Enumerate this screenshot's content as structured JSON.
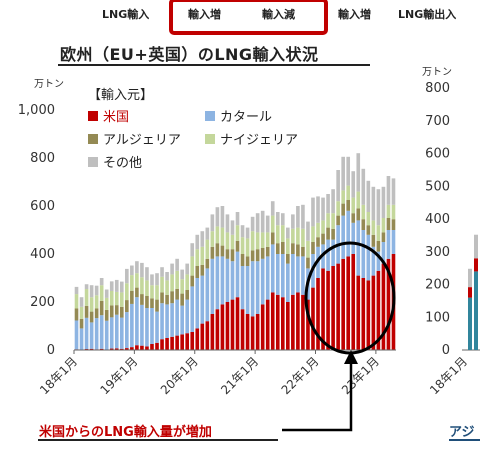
{
  "tabs": [
    "LNG輸入",
    "輸入増",
    "輸入減",
    "輸入増",
    "LNG輸出入"
  ],
  "title": "欧州（EU+英国）のLNG輸入状況",
  "callout": "米国からのLNG輸入量が増加",
  "asia_title_fragment": "アジ",
  "colors": {
    "us": "#c00000",
    "qatar": "#8db4e2",
    "algeria": "#948a54",
    "nigeria": "#c4d79b",
    "other": "#bfbfbf",
    "frame": "#c00000",
    "ellipse": "#000000",
    "callout_text": "#c00000",
    "asia_bar_blue": "#31859c"
  },
  "chart_data": [
    {
      "type": "bar",
      "stacked": true,
      "unit": "万トン",
      "ylim": [
        0,
        1000
      ],
      "yticks": [
        "0",
        "200",
        "400",
        "600",
        "800",
        "1,000"
      ],
      "xtick_labels": [
        "18年1月",
        "19年1月",
        "20年1月",
        "21年1月",
        "22年1月",
        "23年1月"
      ],
      "legend_title": "【輸入元】",
      "legend": [
        "米国",
        "カタール",
        "アルジェリア",
        "ナイジェリア",
        "その他"
      ],
      "months": 64,
      "series": [
        {
          "name": "米国",
          "values": [
            3,
            0,
            4,
            5,
            3,
            5,
            2,
            6,
            7,
            5,
            8,
            12,
            20,
            18,
            15,
            25,
            30,
            45,
            50,
            55,
            60,
            65,
            70,
            75,
            90,
            110,
            120,
            150,
            170,
            190,
            200,
            210,
            220,
            170,
            150,
            140,
            150,
            190,
            210,
            240,
            230,
            220,
            200,
            230,
            240,
            230,
            210,
            260,
            300,
            340,
            330,
            350,
            360,
            380,
            390,
            400,
            310,
            300,
            290,
            310,
            330,
            360,
            380,
            400
          ]
        },
        {
          "name": "カタール",
          "values": [
            120,
            90,
            130,
            110,
            130,
            140,
            120,
            130,
            140,
            130,
            150,
            180,
            200,
            170,
            160,
            150,
            130,
            150,
            140,
            140,
            150,
            120,
            140,
            190,
            210,
            200,
            220,
            230,
            220,
            200,
            180,
            160,
            190,
            180,
            200,
            230,
            220,
            190,
            180,
            200,
            170,
            180,
            160,
            170,
            150,
            160,
            130,
            140,
            130,
            100,
            130,
            110,
            160,
            180,
            190,
            130,
            230,
            200,
            190,
            120,
            80,
            90,
            120,
            100
          ]
        },
        {
          "name": "アルジェリア",
          "values": [
            50,
            40,
            50,
            45,
            40,
            60,
            45,
            50,
            40,
            45,
            50,
            55,
            40,
            45,
            50,
            40,
            50,
            45,
            40,
            50,
            45,
            50,
            40,
            45,
            50,
            45,
            40,
            50,
            55,
            45,
            40,
            50,
            45,
            50,
            40,
            45,
            50,
            45,
            40,
            50,
            45,
            50,
            40,
            45,
            50,
            40,
            45,
            50,
            40,
            45,
            50,
            45,
            40,
            50,
            45,
            40,
            50,
            45,
            40,
            50,
            45,
            40,
            50,
            45
          ]
        },
        {
          "name": "ナイジェリア",
          "values": [
            60,
            50,
            70,
            60,
            55,
            65,
            50,
            60,
            55,
            60,
            70,
            65,
            60,
            70,
            65,
            55,
            60,
            65,
            60,
            70,
            75,
            60,
            65,
            80,
            70,
            75,
            80,
            65,
            70,
            75,
            70,
            60,
            65,
            70,
            75,
            80,
            70,
            65,
            60,
            70,
            75,
            70,
            65,
            60,
            70,
            75,
            70,
            65,
            60,
            55,
            60,
            65,
            60,
            55,
            60,
            65,
            70,
            60,
            55,
            60,
            65,
            60,
            55,
            60
          ]
        },
        {
          "name": "その他",
          "values": [
            30,
            40,
            20,
            50,
            40,
            30,
            35,
            40,
            50,
            45,
            60,
            40,
            50,
            60,
            55,
            45,
            50,
            40,
            35,
            45,
            50,
            40,
            45,
            55,
            60,
            65,
            50,
            70,
            80,
            90,
            75,
            60,
            55,
            50,
            45,
            60,
            80,
            90,
            70,
            60,
            55,
            50,
            45,
            60,
            90,
            100,
            80,
            120,
            110,
            95,
            80,
            100,
            130,
            140,
            120,
            110,
            160,
            150,
            130,
            140,
            150,
            130,
            120,
            110
          ]
        }
      ]
    },
    {
      "type": "bar",
      "unit": "万トン",
      "ylim": [
        0,
        800
      ],
      "yticks": [
        "0",
        "100",
        "200",
        "300",
        "400",
        "500",
        "600",
        "700",
        "800"
      ],
      "xtick_labels": [
        "18年1月"
      ]
    }
  ]
}
